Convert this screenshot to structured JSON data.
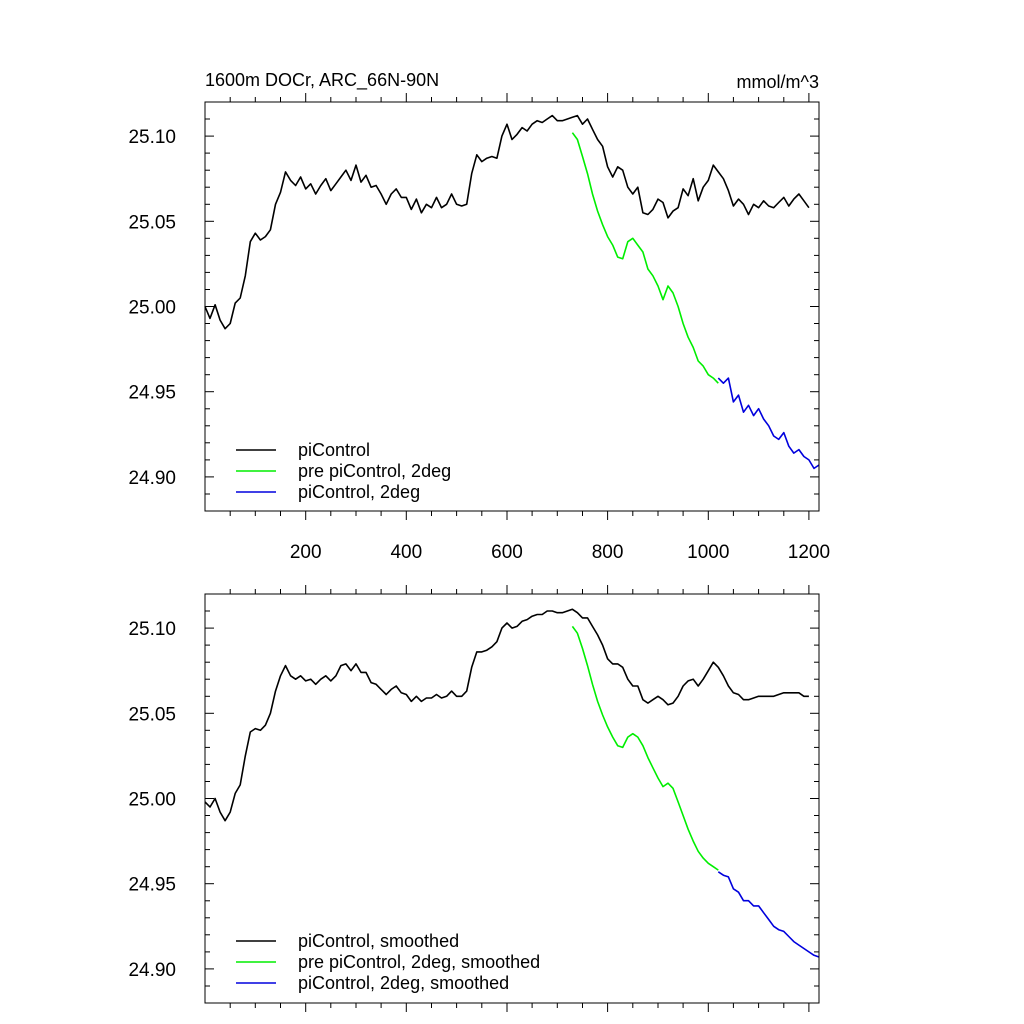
{
  "colors": {
    "picontrol": "#000000",
    "pre": "#00ee00",
    "twodeg": "#0000dd"
  },
  "chart_data": [
    {
      "type": "line",
      "title_left": "1600m DOCr, ARC_66N-90N",
      "title_right": "mmol/m^3",
      "xlim": [
        0,
        1220
      ],
      "ylim": [
        24.88,
        25.12
      ],
      "xticks": [
        200,
        400,
        600,
        800,
        1000,
        1200
      ],
      "xtick_labels": [
        "200",
        "400",
        "600",
        "800",
        "1000",
        "1200"
      ],
      "yticks": [
        24.9,
        24.95,
        25.0,
        25.05,
        25.1
      ],
      "ytick_labels": [
        "24.90",
        "24.95",
        "25.00",
        "25.05",
        "25.10"
      ],
      "legend": [
        "piControl",
        "pre piControl, 2deg",
        "piControl, 2deg"
      ],
      "series": [
        {
          "name": "piControl",
          "color_key": "picontrol",
          "x": [
            0,
            10,
            20,
            30,
            40,
            50,
            60,
            70,
            80,
            90,
            100,
            110,
            120,
            130,
            140,
            150,
            160,
            170,
            180,
            190,
            200,
            210,
            220,
            230,
            240,
            250,
            260,
            270,
            280,
            290,
            300,
            310,
            320,
            330,
            340,
            350,
            360,
            370,
            380,
            390,
            400,
            410,
            420,
            430,
            440,
            450,
            460,
            470,
            480,
            490,
            500,
            510,
            520,
            530,
            540,
            550,
            560,
            570,
            580,
            590,
            600,
            610,
            620,
            630,
            640,
            650,
            660,
            670,
            680,
            690,
            700,
            710,
            720,
            730,
            740,
            750,
            760,
            770,
            780,
            790,
            800,
            810,
            820,
            830,
            840,
            850,
            860,
            870,
            880,
            890,
            900,
            910,
            920,
            930,
            940,
            950,
            960,
            970,
            980,
            990,
            1000,
            1010,
            1020,
            1030,
            1040,
            1050,
            1060,
            1070,
            1080,
            1090,
            1100,
            1110,
            1120,
            1130,
            1140,
            1150,
            1160,
            1170,
            1180,
            1190,
            1200
          ],
          "y": [
            25.0,
            24.993,
            25.001,
            24.992,
            24.987,
            24.99,
            25.002,
            25.005,
            25.018,
            25.038,
            25.043,
            25.039,
            25.041,
            25.045,
            25.06,
            25.067,
            25.079,
            25.074,
            25.071,
            25.076,
            25.069,
            25.072,
            25.066,
            25.071,
            25.075,
            25.068,
            25.072,
            25.076,
            25.08,
            25.074,
            25.083,
            25.073,
            25.077,
            25.07,
            25.071,
            25.066,
            25.06,
            25.066,
            25.069,
            25.064,
            25.064,
            25.057,
            25.063,
            25.055,
            25.06,
            25.058,
            25.064,
            25.058,
            25.06,
            25.066,
            25.06,
            25.059,
            25.06,
            25.078,
            25.089,
            25.085,
            25.087,
            25.088,
            25.087,
            25.1,
            25.107,
            25.098,
            25.101,
            25.105,
            25.103,
            25.107,
            25.109,
            25.108,
            25.11,
            25.112,
            25.109,
            25.109,
            25.11,
            25.111,
            25.112,
            25.107,
            25.11,
            25.104,
            25.098,
            25.094,
            25.082,
            25.076,
            25.082,
            25.08,
            25.07,
            25.066,
            25.07,
            25.055,
            25.054,
            25.057,
            25.063,
            25.061,
            25.052,
            25.056,
            25.058,
            25.069,
            25.065,
            25.075,
            25.062,
            25.07,
            25.074,
            25.083,
            25.079,
            25.075,
            25.068,
            25.059,
            25.063,
            25.06,
            25.054,
            25.06,
            25.058,
            25.062,
            25.059,
            25.058,
            25.061,
            25.064,
            25.059,
            25.063,
            25.066,
            25.062,
            25.058
          ]
        },
        {
          "name": "pre piControl, 2deg",
          "color_key": "pre",
          "x": [
            730,
            740,
            750,
            760,
            770,
            780,
            790,
            800,
            810,
            820,
            830,
            840,
            850,
            860,
            870,
            880,
            890,
            900,
            910,
            920,
            930,
            940,
            950,
            960,
            970,
            980,
            990,
            1000,
            1010,
            1020
          ],
          "y": [
            25.102,
            25.098,
            25.088,
            25.078,
            25.066,
            25.056,
            25.048,
            25.041,
            25.036,
            25.029,
            25.028,
            25.038,
            25.04,
            25.036,
            25.032,
            25.022,
            25.018,
            25.012,
            25.004,
            25.012,
            25.008,
            25.0,
            24.99,
            24.982,
            24.976,
            24.968,
            24.965,
            24.96,
            24.958,
            24.955
          ]
        },
        {
          "name": "piControl, 2deg",
          "color_key": "twodeg",
          "x": [
            1020,
            1030,
            1040,
            1050,
            1060,
            1070,
            1080,
            1090,
            1100,
            1110,
            1120,
            1130,
            1140,
            1150,
            1160,
            1170,
            1180,
            1190,
            1200,
            1210,
            1220
          ],
          "y": [
            24.958,
            24.955,
            24.958,
            24.944,
            24.948,
            24.938,
            24.942,
            24.936,
            24.94,
            24.934,
            24.93,
            24.924,
            24.922,
            24.926,
            24.918,
            24.914,
            24.916,
            24.912,
            24.91,
            24.905,
            24.907
          ]
        }
      ]
    },
    {
      "type": "line",
      "xlim": [
        0,
        1220
      ],
      "ylim": [
        24.88,
        25.12
      ],
      "xticks": [
        200,
        400,
        600,
        800,
        1000,
        1200
      ],
      "yticks": [
        24.9,
        24.95,
        25.0,
        25.05,
        25.1
      ],
      "ytick_labels": [
        "24.90",
        "24.95",
        "25.00",
        "25.05",
        "25.10"
      ],
      "legend": [
        "piControl, smoothed",
        "pre piControl, 2deg, smoothed",
        "piControl, 2deg, smoothed"
      ],
      "series": [
        {
          "name": "piControl, smoothed",
          "color_key": "picontrol",
          "x": [
            0,
            10,
            20,
            30,
            40,
            50,
            60,
            70,
            80,
            90,
            100,
            110,
            120,
            130,
            140,
            150,
            160,
            170,
            180,
            190,
            200,
            210,
            220,
            230,
            240,
            250,
            260,
            270,
            280,
            290,
            300,
            310,
            320,
            330,
            340,
            350,
            360,
            370,
            380,
            390,
            400,
            410,
            420,
            430,
            440,
            450,
            460,
            470,
            480,
            490,
            500,
            510,
            520,
            530,
            540,
            550,
            560,
            570,
            580,
            590,
            600,
            610,
            620,
            630,
            640,
            650,
            660,
            670,
            680,
            690,
            700,
            710,
            720,
            730,
            740,
            750,
            760,
            770,
            780,
            790,
            800,
            810,
            820,
            830,
            840,
            850,
            860,
            870,
            880,
            890,
            900,
            910,
            920,
            930,
            940,
            950,
            960,
            970,
            980,
            990,
            1000,
            1010,
            1020,
            1030,
            1040,
            1050,
            1060,
            1070,
            1080,
            1090,
            1100,
            1110,
            1120,
            1130,
            1140,
            1150,
            1160,
            1170,
            1180,
            1190,
            1200
          ],
          "y": [
            24.998,
            24.995,
            25.0,
            24.992,
            24.987,
            24.992,
            25.003,
            25.008,
            25.025,
            25.039,
            25.041,
            25.04,
            25.043,
            25.05,
            25.063,
            25.072,
            25.078,
            25.072,
            25.07,
            25.072,
            25.069,
            25.07,
            25.067,
            25.07,
            25.072,
            25.069,
            25.072,
            25.078,
            25.079,
            25.075,
            25.079,
            25.074,
            25.074,
            25.068,
            25.067,
            25.064,
            25.061,
            25.064,
            25.066,
            25.062,
            25.061,
            25.057,
            25.06,
            25.057,
            25.059,
            25.059,
            25.061,
            25.059,
            25.06,
            25.063,
            25.06,
            25.06,
            25.063,
            25.077,
            25.086,
            25.086,
            25.087,
            25.089,
            25.092,
            25.1,
            25.103,
            25.1,
            25.101,
            25.104,
            25.105,
            25.107,
            25.108,
            25.108,
            25.11,
            25.11,
            25.109,
            25.109,
            25.11,
            25.111,
            25.109,
            25.106,
            25.106,
            25.101,
            25.096,
            25.09,
            25.082,
            25.079,
            25.079,
            25.077,
            25.07,
            25.066,
            25.066,
            25.058,
            25.056,
            25.058,
            25.06,
            25.058,
            25.055,
            25.056,
            25.06,
            25.066,
            25.069,
            25.07,
            25.066,
            25.07,
            25.075,
            25.08,
            25.077,
            25.072,
            25.066,
            25.062,
            25.061,
            25.058,
            25.058,
            25.059,
            25.06,
            25.06,
            25.06,
            25.06,
            25.061,
            25.062,
            25.062,
            25.062,
            25.062,
            25.06,
            25.06
          ]
        },
        {
          "name": "pre piControl, 2deg, smoothed",
          "color_key": "pre",
          "x": [
            730,
            740,
            750,
            760,
            770,
            780,
            790,
            800,
            810,
            820,
            830,
            840,
            850,
            860,
            870,
            880,
            890,
            900,
            910,
            920,
            930,
            940,
            950,
            960,
            970,
            980,
            990,
            1000,
            1010,
            1020
          ],
          "y": [
            25.101,
            25.097,
            25.088,
            25.078,
            25.067,
            25.057,
            25.049,
            25.042,
            25.036,
            25.031,
            25.03,
            25.036,
            25.038,
            25.036,
            25.031,
            25.024,
            25.018,
            25.012,
            25.007,
            25.009,
            25.006,
            24.998,
            24.99,
            24.982,
            24.975,
            24.969,
            24.965,
            24.962,
            24.96,
            24.958
          ]
        },
        {
          "name": "piControl, 2deg, smoothed",
          "color_key": "twodeg",
          "x": [
            1020,
            1030,
            1040,
            1050,
            1060,
            1070,
            1080,
            1090,
            1100,
            1110,
            1120,
            1130,
            1140,
            1150,
            1160,
            1170,
            1180,
            1190,
            1200,
            1210,
            1220
          ],
          "y": [
            24.957,
            24.955,
            24.954,
            24.947,
            24.945,
            24.94,
            24.94,
            24.937,
            24.937,
            24.933,
            24.929,
            24.925,
            24.923,
            24.922,
            24.919,
            24.916,
            24.914,
            24.912,
            24.91,
            24.908,
            24.907
          ]
        }
      ]
    }
  ]
}
